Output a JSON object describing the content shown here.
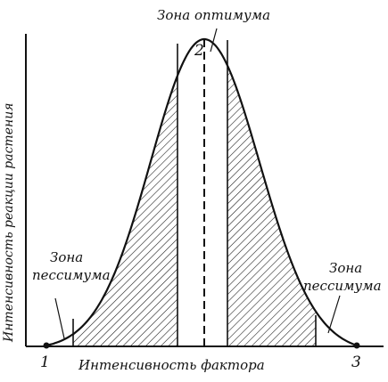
{
  "labels": {
    "optimum_zone": "Зона оптимума",
    "pessimum_left_line1": "Зона",
    "pessimum_left_line2": "пессимума",
    "pessimum_right_line1": "Зона",
    "pessimum_right_line2": "пессимума",
    "x_axis": "Интенсивность фактора",
    "y_axis": "Интенсивность реакции растения",
    "point_1": "1",
    "point_2": "2",
    "point_3": "3"
  },
  "colors": {
    "ink": "#111111",
    "background": "#ffffff"
  }
}
